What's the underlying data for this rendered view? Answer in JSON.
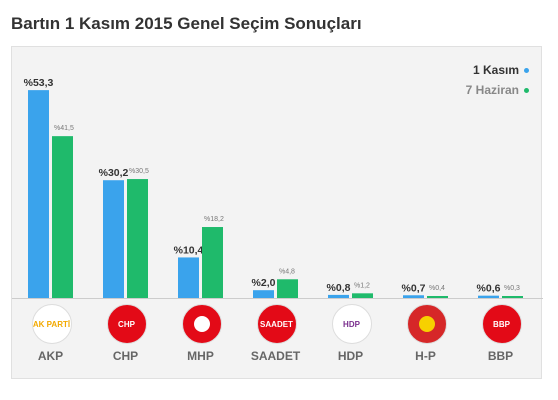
{
  "title": "Bartın 1 Kasım 2015 Genel Seçim Sonuçları",
  "legend": {
    "s1": "1 Kasım",
    "s2": "7 Haziran"
  },
  "colors": {
    "nov": "#3aa3ec",
    "jun": "#1fba6b",
    "axis": "#cccccc"
  },
  "chart_data": {
    "type": "bar",
    "title": "Bartın 1 Kasım 2015 Genel Seçim Sonuçları",
    "xlabel": "",
    "ylabel": "",
    "grid": false,
    "legend_position": "top-right",
    "categories": [
      "AKP",
      "CHP",
      "MHP",
      "SAADET",
      "HDP",
      "H-P",
      "BBP"
    ],
    "series": [
      {
        "name": "1 Kasım",
        "values": [
          53.3,
          30.2,
          10.4,
          2.0,
          0.8,
          0.7,
          0.6
        ],
        "labels": [
          "%53,3",
          "%30,2",
          "%10,4",
          "%2,0",
          "%0,8",
          "%0,7",
          "%0,6"
        ]
      },
      {
        "name": "7 Haziran",
        "values": [
          41.5,
          30.5,
          18.2,
          4.8,
          1.2,
          0.4,
          0.3
        ],
        "labels": [
          "%41,5",
          "%30,5",
          "%18,2",
          "%4,8",
          "%1,2",
          "%0,4",
          "%0,3"
        ]
      }
    ]
  },
  "logos": [
    {
      "text": "AK PARTİ",
      "bg": "#ffffff",
      "fg": "#f2a900",
      "icon": "lightbulb-icon"
    },
    {
      "text": "CHP",
      "bg": "#e30a17",
      "fg": "#ffffff",
      "icon": "six-arrows-icon"
    },
    {
      "text": "",
      "bg": "#e30a17",
      "fg": "#ffffff",
      "icon": "three-crescents-icon"
    },
    {
      "text": "SAADET",
      "bg": "#e30a17",
      "fg": "#ffffff",
      "icon": "crescent-star-icon"
    },
    {
      "text": "HDP",
      "bg": "#ffffff",
      "fg": "#7a2f8e",
      "icon": "tree-icon"
    },
    {
      "text": "",
      "bg": "#d62728",
      "fg": "#f7d000",
      "icon": "sun-icon"
    },
    {
      "text": "BBP",
      "bg": "#e30a17",
      "fg": "#ffffff",
      "icon": "crescent-icon"
    }
  ]
}
